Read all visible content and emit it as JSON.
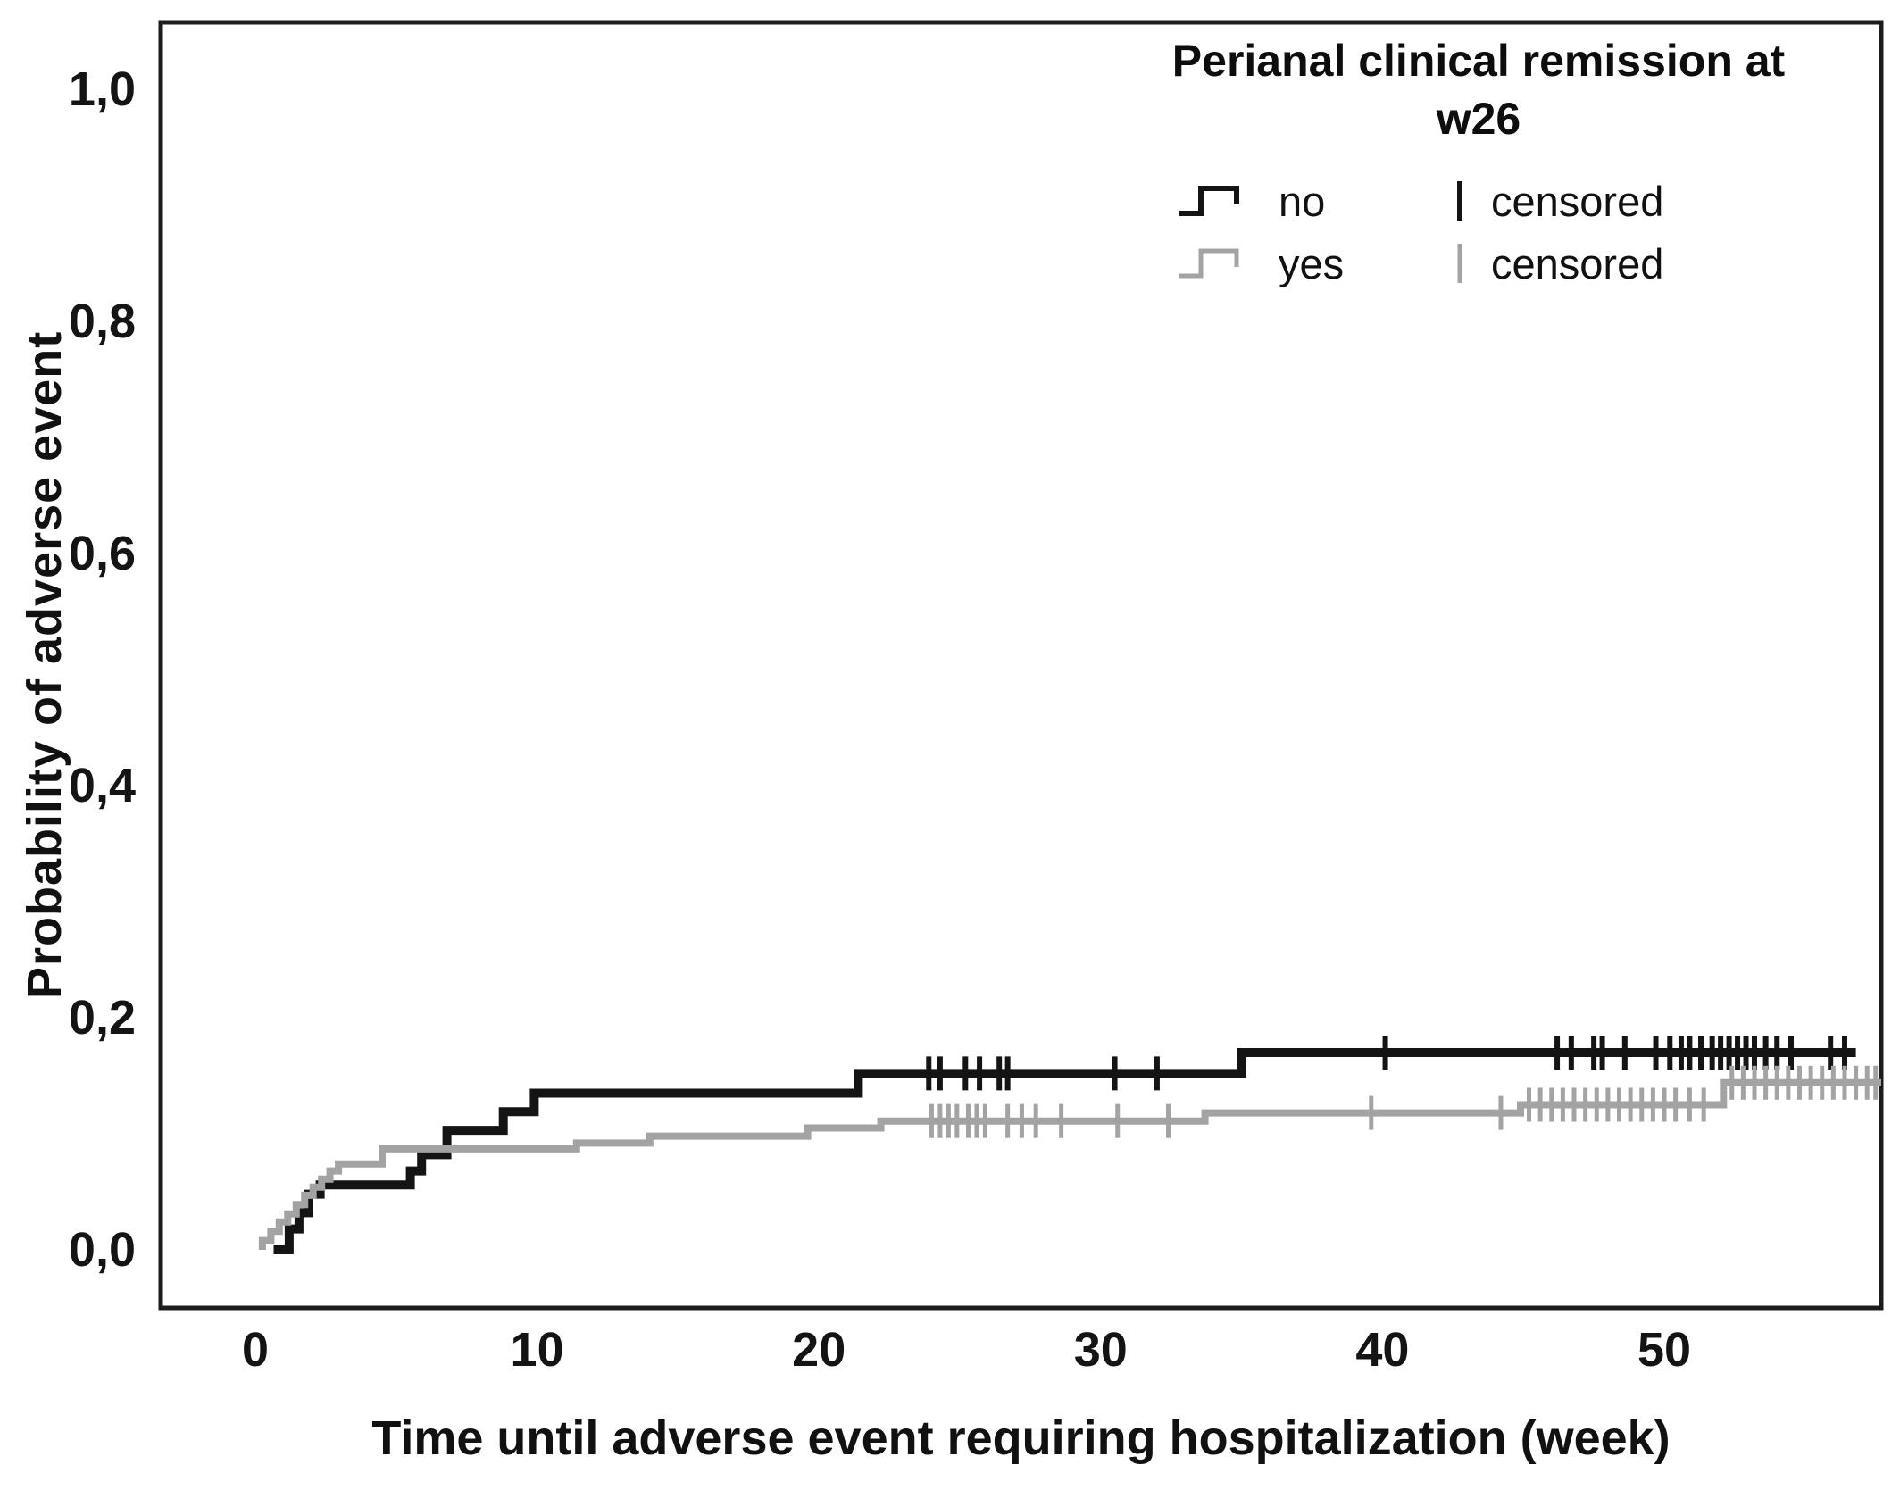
{
  "chart_data": {
    "type": "line",
    "subtype": "kaplan-meier-step-plot",
    "title": "",
    "xlabel": "Time until adverse event requiring hospitalization (week)",
    "ylabel": "Probability of adverse event",
    "x_ticks": [
      0,
      10,
      20,
      30,
      40,
      50
    ],
    "x_tick_labels": [
      "0",
      "10",
      "20",
      "30",
      "40",
      "50"
    ],
    "xlim": [
      -3.4,
      57.7
    ],
    "y_ticks": [
      0,
      0.2,
      0.4,
      0.6,
      0.8,
      1.0
    ],
    "y_tick_labels": [
      "0,0",
      "0,2",
      "0,4",
      "0,6",
      "0,8",
      "1,0"
    ],
    "ylim": [
      -0.05,
      1.06
    ],
    "grid": false,
    "frame_color": "#1c1c1c",
    "legend": {
      "title_line1": "Perianal clinical remission at",
      "title_line2": "w26",
      "position": "top-right"
    },
    "series": [
      {
        "name": "no",
        "color": "#141414",
        "censored_label": "censored",
        "line_width": 10,
        "steps": [
          [
            0.65,
            0.0
          ],
          [
            1.2,
            0.018
          ],
          [
            1.55,
            0.032
          ],
          [
            1.9,
            0.048
          ],
          [
            2.3,
            0.056
          ],
          [
            5.5,
            0.068
          ],
          [
            5.9,
            0.082
          ],
          [
            6.8,
            0.103
          ],
          [
            8.8,
            0.119
          ],
          [
            9.9,
            0.135
          ],
          [
            21.4,
            0.152
          ],
          [
            35.0,
            0.17
          ]
        ],
        "end_week": 56.8,
        "censored_weeks": [
          23.9,
          24.3,
          25.2,
          25.7,
          26.4,
          26.7,
          30.5,
          32.0,
          40.1,
          46.2,
          46.7,
          47.5,
          47.8,
          48.6,
          49.7,
          50.2,
          50.6,
          50.9,
          51.3,
          51.7,
          52.0,
          52.3,
          52.6,
          52.9,
          53.2,
          53.6,
          54.0,
          54.5,
          55.9,
          56.4
        ]
      },
      {
        "name": "yes",
        "color": "#a3a3a3",
        "censored_label": "censored",
        "line_width": 8,
        "steps": [
          [
            0.25,
            0.008
          ],
          [
            0.55,
            0.016
          ],
          [
            0.85,
            0.024
          ],
          [
            1.15,
            0.031
          ],
          [
            1.45,
            0.039
          ],
          [
            1.75,
            0.047
          ],
          [
            2.05,
            0.054
          ],
          [
            2.35,
            0.061
          ],
          [
            2.65,
            0.068
          ],
          [
            2.95,
            0.074
          ],
          [
            4.5,
            0.087
          ],
          [
            11.4,
            0.092
          ],
          [
            14.0,
            0.098
          ],
          [
            19.6,
            0.105
          ],
          [
            22.2,
            0.111
          ],
          [
            33.7,
            0.118
          ],
          [
            44.9,
            0.125
          ],
          [
            52.1,
            0.144
          ]
        ],
        "end_week": 57.7,
        "censored_weeks": [
          24.0,
          24.3,
          24.6,
          24.9,
          25.3,
          25.6,
          25.9,
          26.7,
          27.2,
          27.7,
          28.6,
          30.6,
          32.4,
          39.6,
          44.2,
          45.2,
          45.6,
          46.0,
          46.4,
          46.8,
          47.2,
          47.6,
          48.0,
          48.4,
          48.8,
          49.2,
          49.6,
          50.0,
          50.4,
          50.9,
          51.4,
          52.4,
          52.8,
          53.2,
          53.6,
          54.0,
          54.4,
          54.8,
          55.2,
          55.6,
          56.0,
          56.4,
          56.8,
          57.2,
          57.5
        ]
      }
    ]
  }
}
